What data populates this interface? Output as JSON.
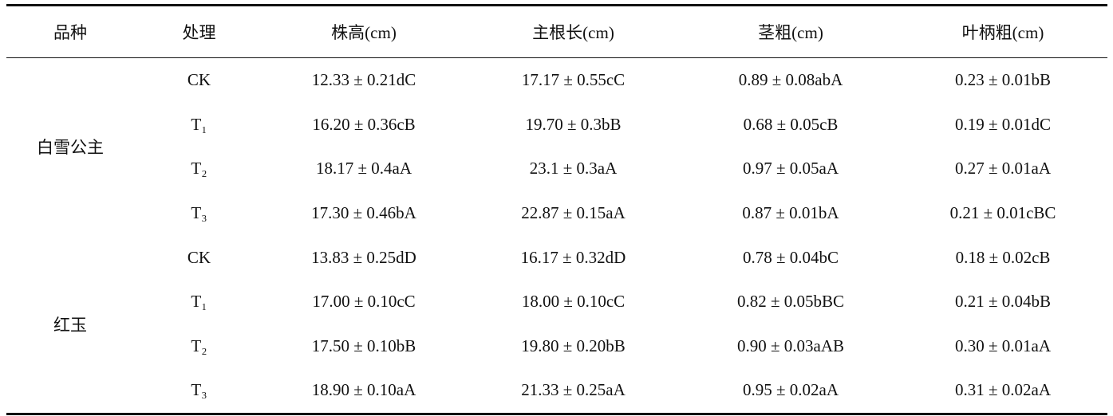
{
  "table": {
    "header": [
      "品种",
      "处理",
      "株高(cm)",
      "主根长(cm)",
      "茎粗(cm)",
      "叶柄粗(cm)"
    ],
    "groups": [
      {
        "variety": "白雪公主",
        "rows": [
          [
            "CK",
            "12.33 ± 0.21dC",
            "17.17 ± 0.55cC",
            "0.89 ± 0.08abA",
            "0.23 ± 0.01bB"
          ],
          [
            "T₁",
            "16.20 ± 0.36cB",
            "19.70 ± 0.3bB",
            "0.68 ± 0.05cB",
            "0.19 ± 0.01dC"
          ],
          [
            "T₂",
            "18.17 ± 0.4aA",
            "23.1 ± 0.3aA",
            "0.97 ± 0.05aA",
            "0.27 ± 0.01aA"
          ],
          [
            "T₃",
            "17.30 ± 0.46bA",
            "22.87 ± 0.15aA",
            "0.87 ± 0.01bA",
            "0.21 ± 0.01cBC"
          ]
        ]
      },
      {
        "variety": "红玉",
        "rows": [
          [
            "CK",
            "13.83 ± 0.25dD",
            "16.17 ± 0.32dD",
            "0.78 ± 0.04bC",
            "0.18 ± 0.02cB"
          ],
          [
            "T₁",
            "17.00 ± 0.10cC",
            "18.00 ± 0.10cC",
            "0.82 ± 0.05bBC",
            "0.21 ± 0.04bB"
          ],
          [
            "T₂",
            "17.50 ± 0.10bB",
            "19.80 ± 0.20bB",
            "0.90 ± 0.03aAB",
            "0.30 ± 0.01aA"
          ],
          [
            "T₃",
            "18.90 ± 0.10aA",
            "21.33 ± 0.25aA",
            "0.95 ± 0.02aA",
            "0.31 ± 0.02aA"
          ]
        ]
      }
    ]
  }
}
